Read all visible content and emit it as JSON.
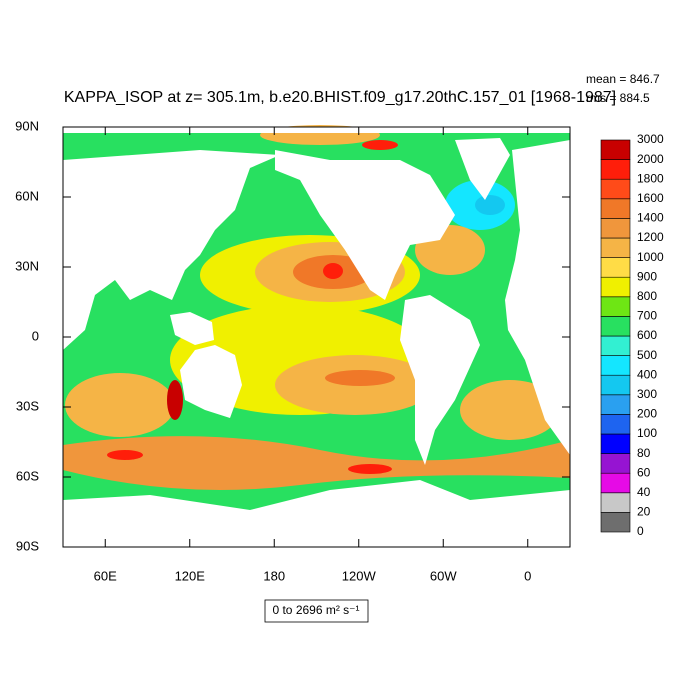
{
  "title": "KAPPA_ISOP at z= 305.1m, b.e20.BHIST.f09_g17.20thC.157_01 [1968-1987]",
  "stats": {
    "mean": "mean = 846.7",
    "rms": "rms = 884.5"
  },
  "map": {
    "lonlim": [
      30,
      390
    ],
    "latlim": [
      -90,
      90
    ],
    "xticks": [
      {
        "value": 60,
        "label": "60E"
      },
      {
        "value": 120,
        "label": "120E"
      },
      180,
      {
        "value": 240,
        "label": "120W"
      },
      {
        "value": 300,
        "label": "60W"
      },
      {
        "value": 360,
        "label": "0"
      }
    ],
    "yticks": [
      {
        "value": -90,
        "label": "90S"
      },
      {
        "value": -60,
        "label": "60S"
      },
      {
        "value": -30,
        "label": "30S"
      },
      0,
      {
        "value": 30,
        "label": "30N"
      },
      {
        "value": 60,
        "label": "60N"
      },
      {
        "value": 90,
        "label": "90N"
      }
    ]
  },
  "colorbar": {
    "levels": [
      0,
      20,
      40,
      60,
      80,
      100,
      200,
      300,
      400,
      500,
      600,
      700,
      800,
      900,
      1000,
      1200,
      1400,
      1600,
      1800,
      2000,
      3000
    ],
    "colors": [
      "#6e6e6e",
      "#c8c8c8",
      "#e60ae6",
      "#9614d2",
      "#0000ff",
      "#1e64f0",
      "#2aa0f0",
      "#14c8f0",
      "#14e6ff",
      "#32f0d2",
      "#28e060",
      "#6ee614",
      "#f0f000",
      "#ffdc46",
      "#f5b446",
      "#f0963c",
      "#f07828",
      "#ff4b19",
      "#ff1e0a",
      "#c80000"
    ]
  },
  "range_label": "0 to 2696 m² s⁻¹"
}
